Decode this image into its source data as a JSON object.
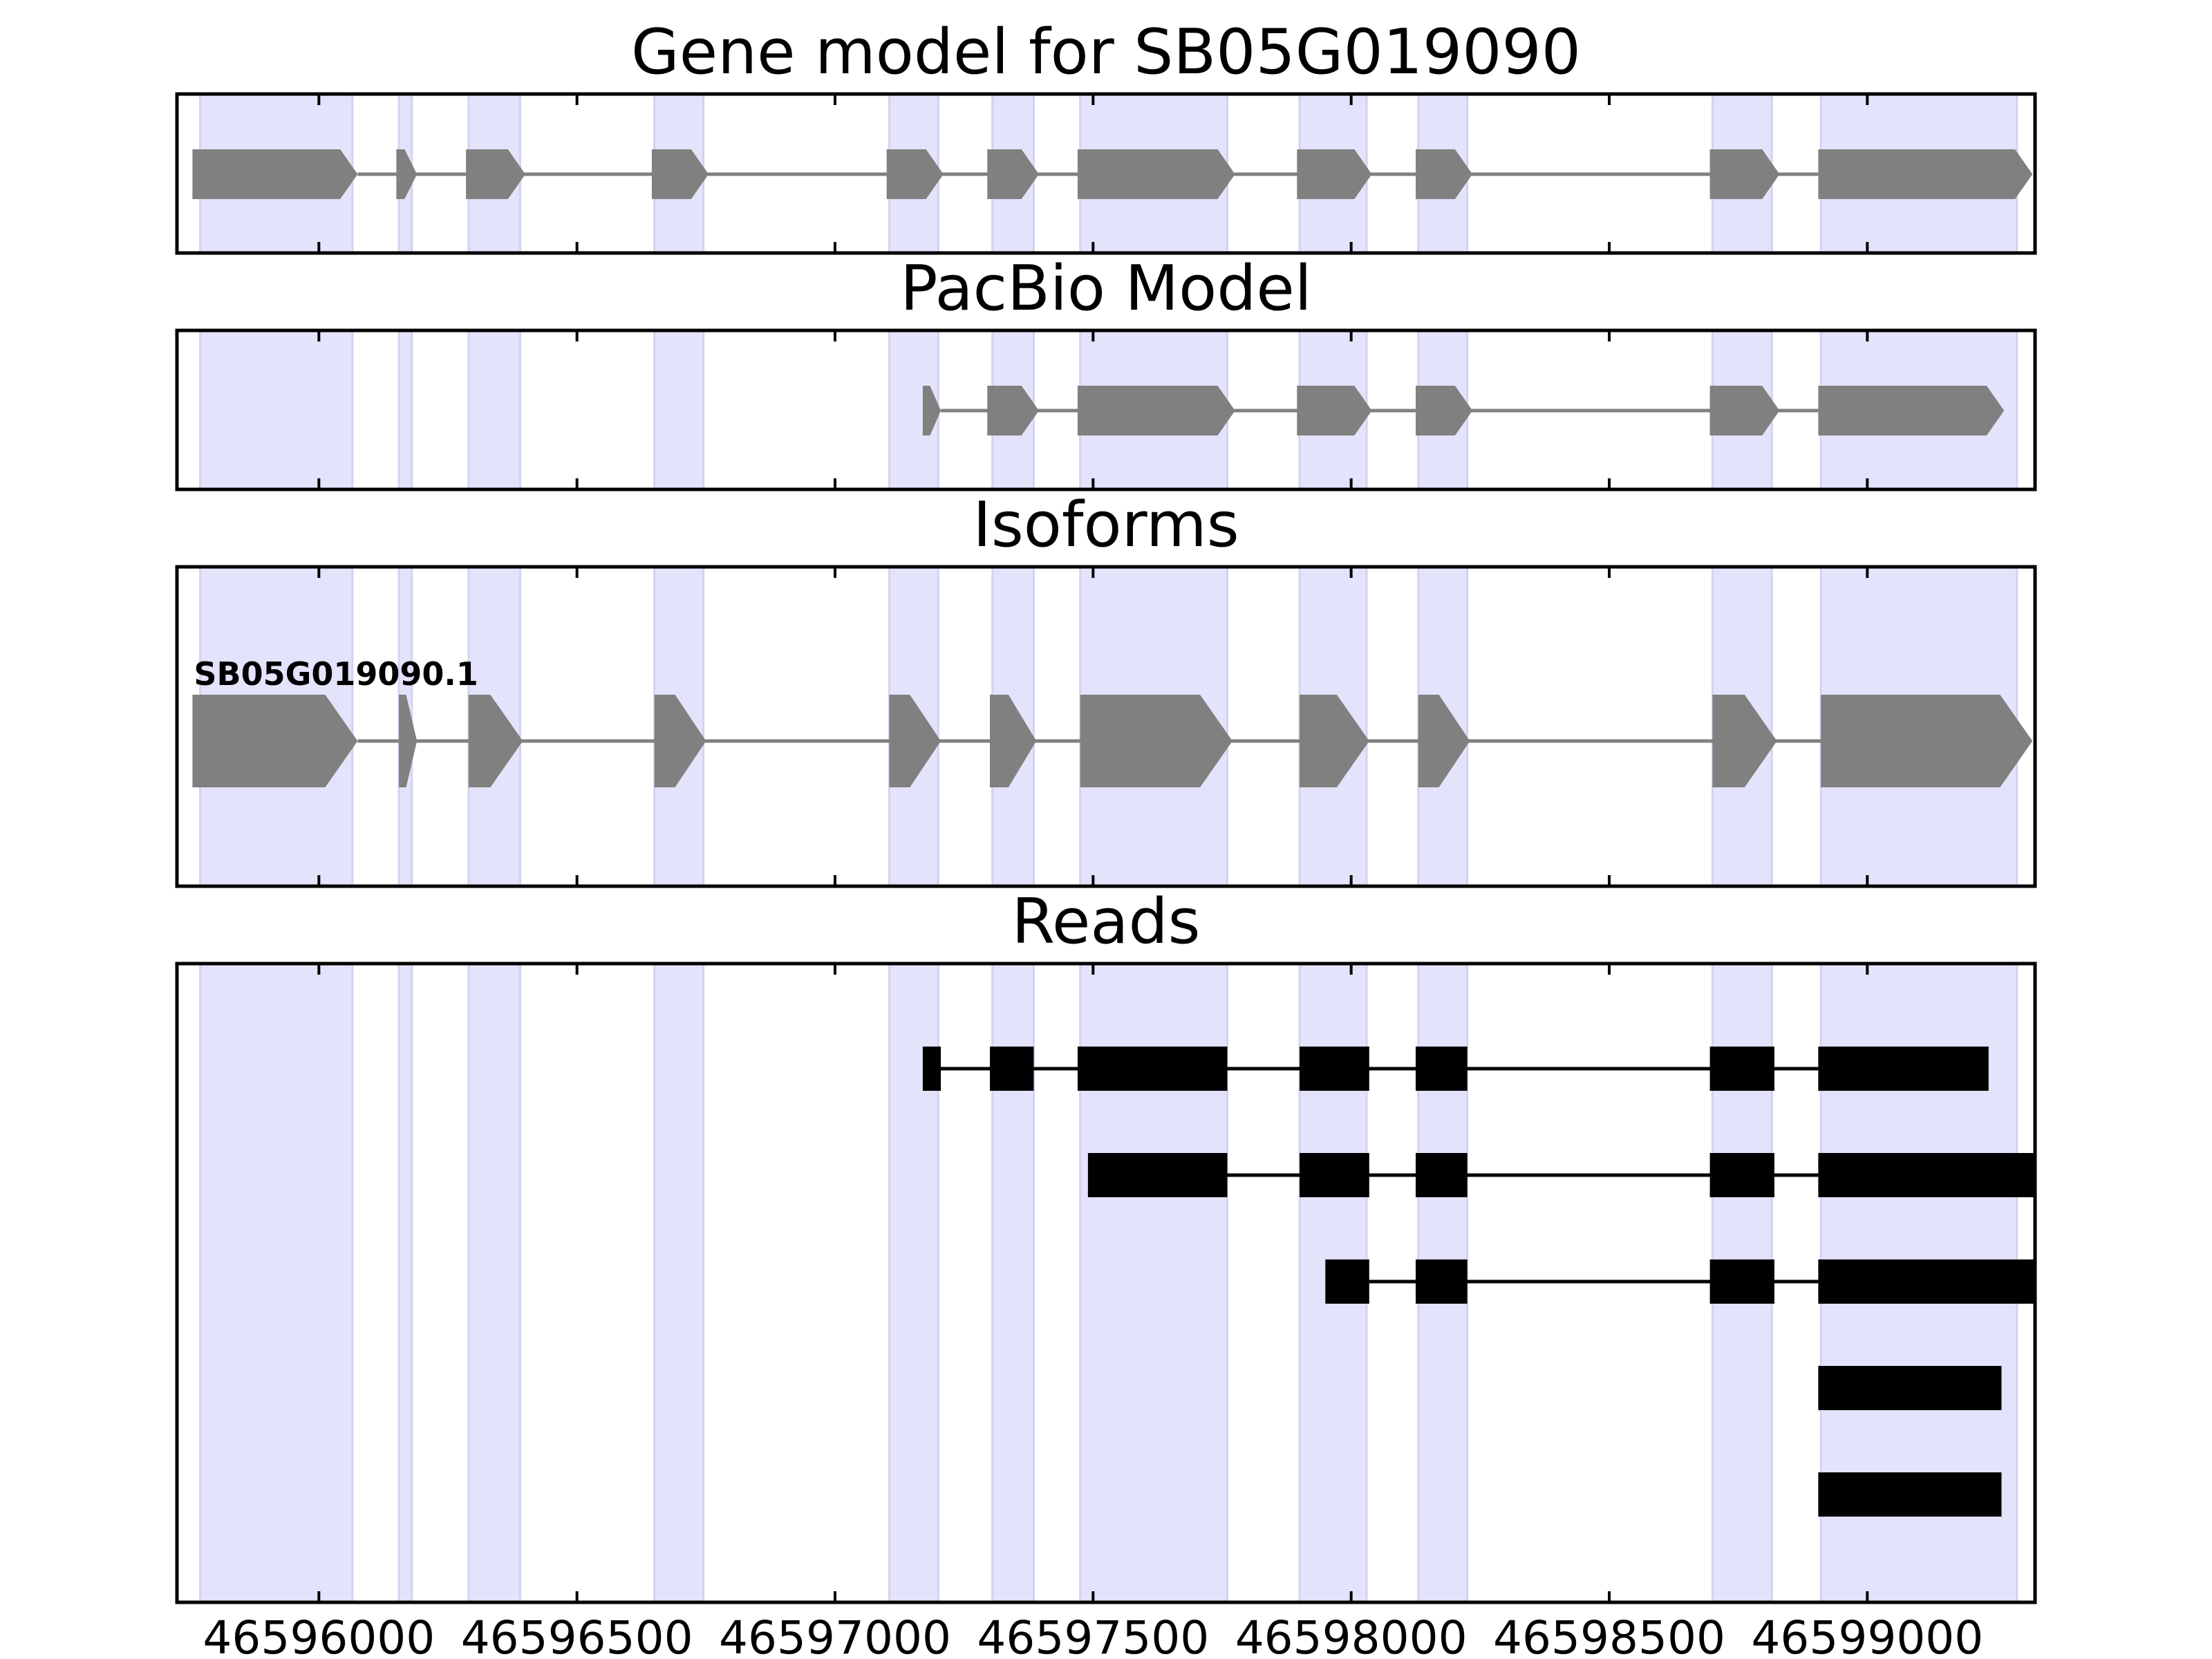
{
  "chart_data": {
    "type": "gene-structure",
    "xlim": [
      46595725,
      46599325
    ],
    "ticks": [
      46596000,
      46596500,
      46597000,
      46597500,
      46598000,
      46598500,
      46599000
    ],
    "tick_labels": [
      "46596000",
      "46596500",
      "46597000",
      "46597500",
      "46598000",
      "46598500",
      "46599000"
    ],
    "colors": {
      "highlight": "#e3e3fb",
      "gene": "#808080",
      "read": "#000000",
      "axis": "#000000"
    },
    "highlight_regions": [
      [
        46595770,
        46596065
      ],
      [
        46596155,
        46596180
      ],
      [
        46596290,
        46596390
      ],
      [
        46596650,
        46596745
      ],
      [
        46597105,
        46597200
      ],
      [
        46597305,
        46597385
      ],
      [
        46597475,
        46597760
      ],
      [
        46597900,
        46598030
      ],
      [
        46598130,
        46598225
      ],
      [
        46598700,
        46598815
      ],
      [
        46598910,
        46599290
      ]
    ],
    "panels": [
      {
        "title": "Gene model for SB05G019090",
        "kind": "model",
        "tracks": [
          {
            "label": "",
            "exons": [
              [
                46595755,
                46596075
              ],
              [
                46596150,
                46596190
              ],
              [
                46596285,
                46596400
              ],
              [
                46596645,
                46596755
              ],
              [
                46597100,
                46597210
              ],
              [
                46597295,
                46597395
              ],
              [
                46597470,
                46597775
              ],
              [
                46597895,
                46598040
              ],
              [
                46598125,
                46598235
              ],
              [
                46598695,
                46598830
              ],
              [
                46598905,
                46599320
              ]
            ]
          }
        ]
      },
      {
        "title": "PacBio Model",
        "kind": "model",
        "tracks": [
          {
            "label": "",
            "exons": [
              [
                46597170,
                46597205
              ],
              [
                46597295,
                46597395
              ],
              [
                46597470,
                46597775
              ],
              [
                46597895,
                46598040
              ],
              [
                46598125,
                46598235
              ],
              [
                46598695,
                46598830
              ],
              [
                46598905,
                46599265
              ]
            ]
          }
        ]
      },
      {
        "title": "Isoforms",
        "kind": "model",
        "tracks": [
          {
            "label": "SB05G019090.1",
            "exons": [
              [
                46595755,
                46596075
              ],
              [
                46596155,
                46596190
              ],
              [
                46596290,
                46596395
              ],
              [
                46596650,
                46596750
              ],
              [
                46597105,
                46597205
              ],
              [
                46597300,
                46597390
              ],
              [
                46597475,
                46597770
              ],
              [
                46597900,
                46598035
              ],
              [
                46598130,
                46598230
              ],
              [
                46598700,
                46598825
              ],
              [
                46598910,
                46599320
              ]
            ]
          }
        ]
      },
      {
        "title": "Reads",
        "kind": "reads",
        "tracks": [
          {
            "exons": [
              [
                46597170,
                46597205
              ],
              [
                46597300,
                46597385
              ],
              [
                46597470,
                46597760
              ],
              [
                46597900,
                46598035
              ],
              [
                46598125,
                46598225
              ],
              [
                46598695,
                46598820
              ],
              [
                46598905,
                46599235
              ]
            ]
          },
          {
            "exons": [
              [
                46597490,
                46597760
              ],
              [
                46597900,
                46598035
              ],
              [
                46598125,
                46598225
              ],
              [
                46598695,
                46598820
              ],
              [
                46598905,
                46599325
              ]
            ]
          },
          {
            "exons": [
              [
                46597950,
                46598035
              ],
              [
                46598125,
                46598225
              ],
              [
                46598695,
                46598820
              ],
              [
                46598905,
                46599325
              ]
            ]
          },
          {
            "exons": [
              [
                46598905,
                46599260
              ]
            ]
          },
          {
            "exons": [
              [
                46598905,
                46599260
              ]
            ]
          }
        ]
      }
    ]
  }
}
